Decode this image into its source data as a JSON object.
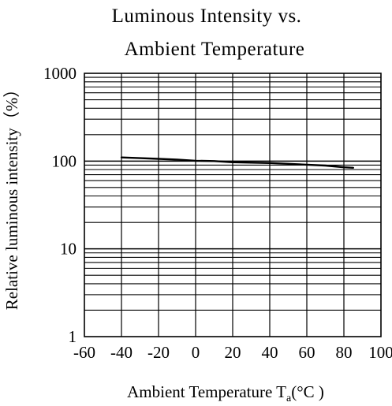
{
  "chart_data": {
    "type": "line",
    "title_lines": [
      "Luminous Intensity vs.",
      "Ambient Temperature"
    ],
    "xlabel": {
      "main": "Ambient Temperature T",
      "subscript": "a",
      "unit": "(°C )"
    },
    "ylabel": "Relative luminous intensity（%）",
    "x_ticks": [
      "-60",
      "-40",
      "-20",
      "0",
      "20",
      "40",
      "60",
      "80",
      "100"
    ],
    "y_ticks": [
      "1",
      "10",
      "100",
      "1000"
    ],
    "xlim": [
      -60,
      100
    ],
    "ylim": [
      1,
      1000
    ],
    "y_scale": "log",
    "grid": true,
    "series": [
      {
        "color": "#000000",
        "x": [
          -40,
          -30,
          -20,
          -10,
          0,
          10,
          20,
          30,
          40,
          50,
          60,
          70,
          80,
          85
        ],
        "y": [
          110,
          108,
          106,
          104,
          101,
          100,
          97,
          96,
          95,
          93,
          91,
          89,
          85,
          84
        ]
      }
    ]
  }
}
